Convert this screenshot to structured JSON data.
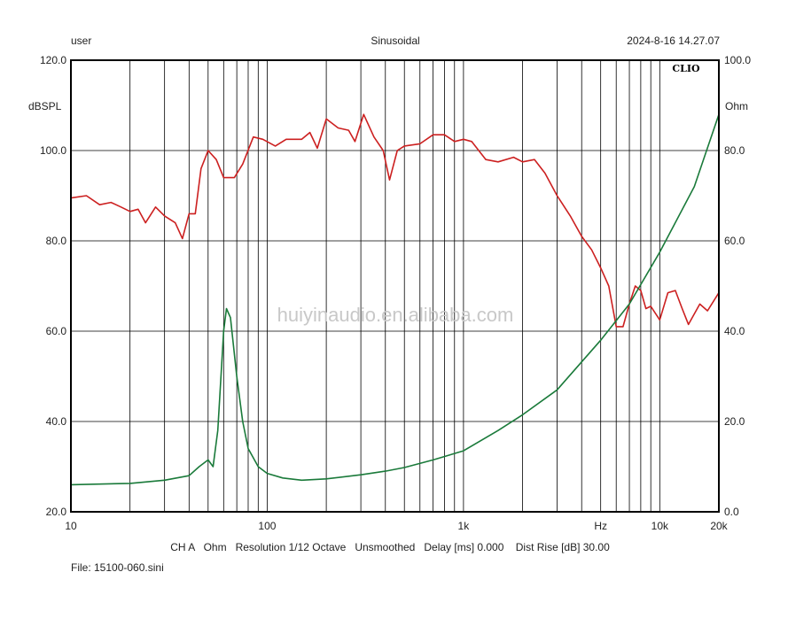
{
  "header": {
    "left": "user",
    "center": "Sinusoidal",
    "right": "2024-8-16 14.27.07"
  },
  "logo": "CLIO",
  "watermark": "huiyinaudio.en.alibaba.com",
  "footer": {
    "settings": "CH A   Ohm   Resolution 1/12 Octave   Unsmoothed   Delay [ms] 0.000    Dist Rise [dB] 30.00",
    "file": "File: 15100-060.sini"
  },
  "chart_data": {
    "type": "line",
    "xscale": "log",
    "xlim": [
      10,
      20000
    ],
    "x_ticks": [
      {
        "v": 10,
        "label": "10"
      },
      {
        "v": 100,
        "label": "100"
      },
      {
        "v": 1000,
        "label": "1k"
      },
      {
        "v": 5000,
        "label": "Hz"
      },
      {
        "v": 10000,
        "label": "10k"
      },
      {
        "v": 20000,
        "label": "20k"
      }
    ],
    "ylabel": "dBSPL",
    "ylim": [
      20,
      120
    ],
    "y_ticks": [
      "20.0",
      "40.0",
      "60.0",
      "80.0",
      "100.0",
      "120.0"
    ],
    "y2label": "Ohm",
    "y2lim": [
      0,
      100
    ],
    "y2_ticks": [
      "0.0",
      "20.0",
      "40.0",
      "60.0",
      "80.0",
      "100.0"
    ],
    "grid": true,
    "colors": {
      "spl": "#cc2020",
      "impedance": "#1a7a3a"
    },
    "series": [
      {
        "axis": "left",
        "color": "#cc2020",
        "points": [
          [
            10,
            89.5
          ],
          [
            12,
            90
          ],
          [
            14,
            88
          ],
          [
            16,
            88.5
          ],
          [
            18,
            87.5
          ],
          [
            20,
            86.5
          ],
          [
            22,
            87
          ],
          [
            24,
            84
          ],
          [
            27,
            87.5
          ],
          [
            30,
            85.5
          ],
          [
            34,
            84
          ],
          [
            37,
            80.5
          ],
          [
            40,
            86
          ],
          [
            43,
            86
          ],
          [
            46,
            96
          ],
          [
            50,
            100
          ],
          [
            55,
            98
          ],
          [
            60,
            94
          ],
          [
            68,
            94
          ],
          [
            75,
            97
          ],
          [
            85,
            103
          ],
          [
            95,
            102.5
          ],
          [
            110,
            101
          ],
          [
            125,
            102.5
          ],
          [
            150,
            102.5
          ],
          [
            165,
            104
          ],
          [
            180,
            100.5
          ],
          [
            200,
            107
          ],
          [
            230,
            105
          ],
          [
            260,
            104.5
          ],
          [
            280,
            102
          ],
          [
            310,
            108
          ],
          [
            350,
            103
          ],
          [
            390,
            100
          ],
          [
            420,
            93.5
          ],
          [
            460,
            100
          ],
          [
            500,
            101
          ],
          [
            600,
            101.5
          ],
          [
            700,
            103.5
          ],
          [
            800,
            103.5
          ],
          [
            900,
            102
          ],
          [
            1000,
            102.5
          ],
          [
            1100,
            102
          ],
          [
            1300,
            98
          ],
          [
            1500,
            97.5
          ],
          [
            1800,
            98.5
          ],
          [
            2000,
            97.5
          ],
          [
            2300,
            98
          ],
          [
            2600,
            95
          ],
          [
            3000,
            90
          ],
          [
            3500,
            85.5
          ],
          [
            4000,
            81
          ],
          [
            4500,
            78
          ],
          [
            5000,
            74
          ],
          [
            5500,
            70
          ],
          [
            6000,
            61
          ],
          [
            6500,
            61
          ],
          [
            7000,
            66
          ],
          [
            7500,
            70
          ],
          [
            8000,
            69
          ],
          [
            8500,
            65
          ],
          [
            9000,
            65.5
          ],
          [
            10000,
            62.5
          ],
          [
            11000,
            68.5
          ],
          [
            12000,
            69
          ],
          [
            13000,
            65
          ],
          [
            14000,
            61.5
          ],
          [
            16000,
            66
          ],
          [
            17500,
            64.5
          ],
          [
            20000,
            68.5
          ]
        ]
      },
      {
        "axis": "right",
        "color": "#1a7a3a",
        "points": [
          [
            10,
            6
          ],
          [
            20,
            6.3
          ],
          [
            30,
            7
          ],
          [
            40,
            8
          ],
          [
            45,
            10
          ],
          [
            50,
            11.5
          ],
          [
            53,
            10
          ],
          [
            56,
            18
          ],
          [
            60,
            40
          ],
          [
            62,
            45
          ],
          [
            65,
            43
          ],
          [
            70,
            30
          ],
          [
            75,
            20
          ],
          [
            80,
            14
          ],
          [
            90,
            10
          ],
          [
            100,
            8.5
          ],
          [
            120,
            7.5
          ],
          [
            150,
            7
          ],
          [
            200,
            7.3
          ],
          [
            300,
            8.2
          ],
          [
            400,
            9
          ],
          [
            500,
            9.8
          ],
          [
            700,
            11.5
          ],
          [
            1000,
            13.5
          ],
          [
            1500,
            18
          ],
          [
            2000,
            21.5
          ],
          [
            3000,
            27
          ],
          [
            5000,
            38
          ],
          [
            7000,
            46
          ],
          [
            10000,
            57.5
          ],
          [
            15000,
            72
          ],
          [
            20000,
            88
          ]
        ]
      }
    ]
  }
}
